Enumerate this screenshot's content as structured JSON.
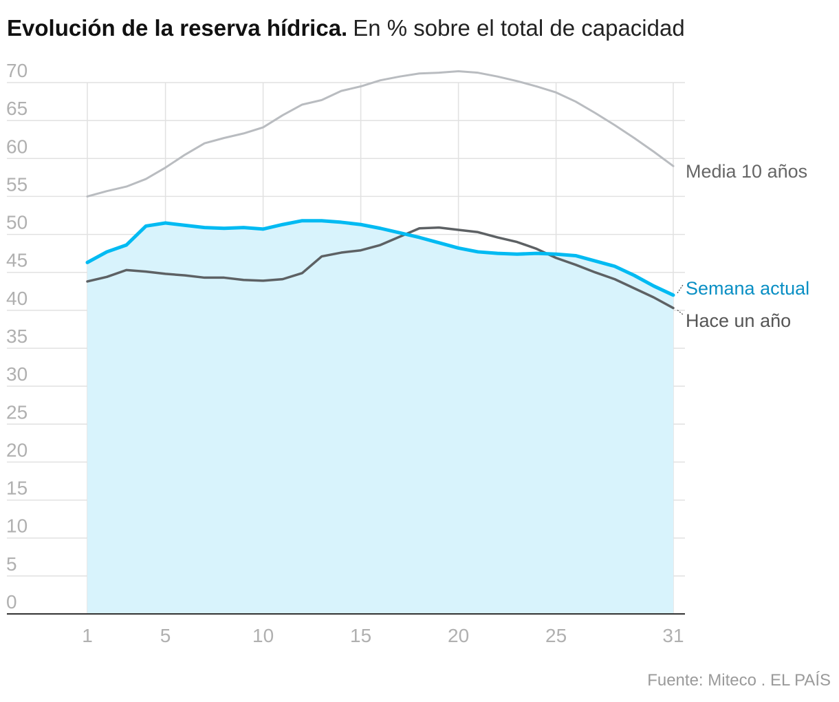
{
  "title": "Evolución de la reserva hídrica.",
  "subtitle": "En % sobre el total de capacidad",
  "source": "Fuente: Miteco . EL PAÍS",
  "chart_data": {
    "type": "line",
    "xlabel": "",
    "ylabel": "",
    "xlim": [
      1,
      31
    ],
    "ylim": [
      0,
      70
    ],
    "x_ticks": [
      1,
      5,
      10,
      15,
      20,
      25,
      31
    ],
    "y_ticks": [
      0,
      5,
      10,
      15,
      20,
      25,
      30,
      35,
      40,
      45,
      50,
      55,
      60,
      65,
      70
    ],
    "grid": true,
    "x": [
      1,
      2,
      3,
      4,
      5,
      6,
      7,
      8,
      9,
      10,
      11,
      12,
      13,
      14,
      15,
      16,
      17,
      18,
      19,
      20,
      21,
      22,
      23,
      24,
      25,
      26,
      27,
      28,
      29,
      30,
      31
    ],
    "series": [
      {
        "name": "Media 10 años",
        "color": "#b9bcc0",
        "fill": false,
        "values": [
          55.0,
          55.7,
          56.3,
          57.3,
          58.8,
          60.5,
          62.0,
          62.7,
          63.3,
          64.1,
          65.7,
          67.1,
          67.7,
          68.9,
          69.5,
          70.3,
          70.8,
          71.2,
          71.3,
          71.5,
          71.3,
          70.8,
          70.2,
          69.5,
          68.7,
          67.5,
          66.0,
          64.4,
          62.7,
          60.9,
          59.0
        ]
      },
      {
        "name": "Semana actual",
        "color": "#00baf2",
        "fill": true,
        "fill_color": "#d8f3fc",
        "values": [
          46.3,
          47.7,
          48.6,
          51.1,
          51.5,
          51.2,
          50.9,
          50.8,
          50.9,
          50.7,
          51.3,
          51.8,
          51.8,
          51.6,
          51.3,
          50.8,
          50.2,
          49.6,
          48.9,
          48.2,
          47.7,
          47.5,
          47.4,
          47.5,
          47.4,
          47.2,
          46.5,
          45.8,
          44.6,
          43.2,
          42.0
        ]
      },
      {
        "name": "Hace un año",
        "color": "#5d6164",
        "fill": false,
        "values": [
          43.8,
          44.4,
          45.3,
          45.1,
          44.8,
          44.6,
          44.3,
          44.3,
          44.0,
          43.9,
          44.1,
          44.9,
          47.1,
          47.6,
          47.9,
          48.6,
          49.7,
          50.8,
          50.9,
          50.6,
          50.3,
          49.6,
          49.0,
          48.1,
          46.9,
          46.0,
          45.0,
          44.1,
          42.9,
          41.7,
          40.3
        ]
      }
    ]
  }
}
